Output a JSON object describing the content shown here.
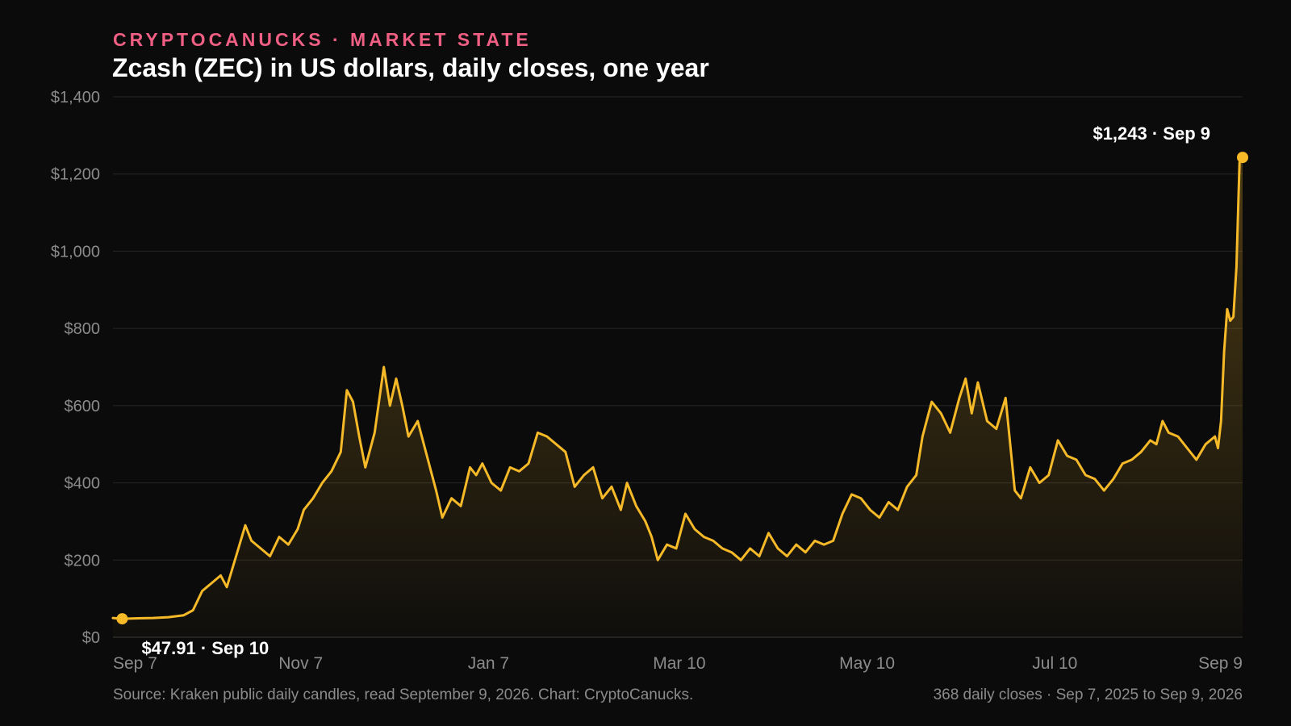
{
  "header": {
    "kicker": "CRYPTOCANUCKS · MARKET STATE",
    "title": "Zcash (ZEC) in US dollars, daily closes, one year"
  },
  "footer": {
    "source": "Source: Kraken public daily candles, read September 9, 2026. Chart: CryptoCanucks.",
    "meta": "368 daily closes · Sep 7, 2025 to Sep 9, 2026"
  },
  "colors": {
    "background": "#0b0b0c",
    "line": "#f6b928",
    "kicker": "#ef5f83",
    "text": "#ffffff",
    "muted": "#8b8b8b",
    "grid": "#262626"
  },
  "chart_data": {
    "type": "area",
    "title": "Zcash (ZEC) in US dollars, daily closes, one year",
    "xlabel": "",
    "ylabel": "",
    "ylim": [
      0,
      1400
    ],
    "yticks": [
      0,
      200,
      400,
      600,
      800,
      1000,
      1200,
      1400
    ],
    "ytick_labels": [
      "$0",
      "$200",
      "$400",
      "$600",
      "$800",
      "$1,000",
      "$1,200",
      "$1,400"
    ],
    "xticks": [
      {
        "date": "2025-09-07",
        "label": "Sep 7"
      },
      {
        "date": "2025-11-07",
        "label": "Nov 7"
      },
      {
        "date": "2026-01-07",
        "label": "Jan 7"
      },
      {
        "date": "2026-03-10",
        "label": "Mar 10"
      },
      {
        "date": "2026-05-10",
        "label": "May 10"
      },
      {
        "date": "2026-07-10",
        "label": "Jul 10"
      },
      {
        "date": "2026-09-09",
        "label": "Sep 9"
      }
    ],
    "x_range": [
      "2025-09-07",
      "2026-09-09"
    ],
    "grid": true,
    "series": [
      {
        "name": "",
        "points": [
          [
            "2025-09-07",
            50
          ],
          [
            "2025-09-10",
            47.91
          ],
          [
            "2025-09-15",
            49
          ],
          [
            "2025-09-20",
            50
          ],
          [
            "2025-09-25",
            52
          ],
          [
            "2025-09-30",
            57
          ],
          [
            "2025-10-03",
            70
          ],
          [
            "2025-10-06",
            120
          ],
          [
            "2025-10-09",
            140
          ],
          [
            "2025-10-12",
            160
          ],
          [
            "2025-10-14",
            130
          ],
          [
            "2025-10-17",
            210
          ],
          [
            "2025-10-20",
            290
          ],
          [
            "2025-10-22",
            250
          ],
          [
            "2025-10-25",
            230
          ],
          [
            "2025-10-28",
            210
          ],
          [
            "2025-10-31",
            260
          ],
          [
            "2025-11-03",
            240
          ],
          [
            "2025-11-06",
            280
          ],
          [
            "2025-11-08",
            330
          ],
          [
            "2025-11-11",
            360
          ],
          [
            "2025-11-14",
            400
          ],
          [
            "2025-11-17",
            430
          ],
          [
            "2025-11-20",
            480
          ],
          [
            "2025-11-22",
            640
          ],
          [
            "2025-11-24",
            610
          ],
          [
            "2025-11-26",
            520
          ],
          [
            "2025-11-28",
            440
          ],
          [
            "2025-12-01",
            530
          ],
          [
            "2025-12-04",
            700
          ],
          [
            "2025-12-06",
            600
          ],
          [
            "2025-12-08",
            670
          ],
          [
            "2025-12-10",
            600
          ],
          [
            "2025-12-12",
            520
          ],
          [
            "2025-12-15",
            560
          ],
          [
            "2025-12-18",
            470
          ],
          [
            "2025-12-21",
            380
          ],
          [
            "2025-12-23",
            310
          ],
          [
            "2025-12-26",
            360
          ],
          [
            "2025-12-29",
            340
          ],
          [
            "2026-01-01",
            440
          ],
          [
            "2026-01-03",
            420
          ],
          [
            "2026-01-05",
            450
          ],
          [
            "2026-01-08",
            400
          ],
          [
            "2026-01-11",
            380
          ],
          [
            "2026-01-14",
            440
          ],
          [
            "2026-01-17",
            430
          ],
          [
            "2026-01-20",
            450
          ],
          [
            "2026-01-23",
            530
          ],
          [
            "2026-01-26",
            520
          ],
          [
            "2026-01-29",
            500
          ],
          [
            "2026-02-01",
            480
          ],
          [
            "2026-02-04",
            390
          ],
          [
            "2026-02-07",
            420
          ],
          [
            "2026-02-10",
            440
          ],
          [
            "2026-02-13",
            360
          ],
          [
            "2026-02-16",
            390
          ],
          [
            "2026-02-19",
            330
          ],
          [
            "2026-02-21",
            400
          ],
          [
            "2026-02-24",
            340
          ],
          [
            "2026-02-27",
            300
          ],
          [
            "2026-03-01",
            260
          ],
          [
            "2026-03-03",
            200
          ],
          [
            "2026-03-06",
            240
          ],
          [
            "2026-03-09",
            230
          ],
          [
            "2026-03-12",
            320
          ],
          [
            "2026-03-15",
            280
          ],
          [
            "2026-03-18",
            260
          ],
          [
            "2026-03-21",
            250
          ],
          [
            "2026-03-24",
            230
          ],
          [
            "2026-03-27",
            220
          ],
          [
            "2026-03-30",
            200
          ],
          [
            "2026-04-02",
            230
          ],
          [
            "2026-04-05",
            210
          ],
          [
            "2026-04-08",
            270
          ],
          [
            "2026-04-11",
            230
          ],
          [
            "2026-04-14",
            210
          ],
          [
            "2026-04-17",
            240
          ],
          [
            "2026-04-20",
            220
          ],
          [
            "2026-04-23",
            250
          ],
          [
            "2026-04-26",
            240
          ],
          [
            "2026-04-29",
            250
          ],
          [
            "2026-05-02",
            320
          ],
          [
            "2026-05-05",
            370
          ],
          [
            "2026-05-08",
            360
          ],
          [
            "2026-05-11",
            330
          ],
          [
            "2026-05-14",
            310
          ],
          [
            "2026-05-17",
            350
          ],
          [
            "2026-05-20",
            330
          ],
          [
            "2026-05-23",
            390
          ],
          [
            "2026-05-26",
            420
          ],
          [
            "2026-05-28",
            520
          ],
          [
            "2026-05-31",
            610
          ],
          [
            "2026-06-03",
            580
          ],
          [
            "2026-06-06",
            530
          ],
          [
            "2026-06-09",
            620
          ],
          [
            "2026-06-11",
            670
          ],
          [
            "2026-06-13",
            580
          ],
          [
            "2026-06-15",
            660
          ],
          [
            "2026-06-18",
            560
          ],
          [
            "2026-06-21",
            540
          ],
          [
            "2026-06-24",
            620
          ],
          [
            "2026-06-27",
            380
          ],
          [
            "2026-06-29",
            360
          ],
          [
            "2026-07-02",
            440
          ],
          [
            "2026-07-05",
            400
          ],
          [
            "2026-07-08",
            420
          ],
          [
            "2026-07-11",
            510
          ],
          [
            "2026-07-14",
            470
          ],
          [
            "2026-07-17",
            460
          ],
          [
            "2026-07-20",
            420
          ],
          [
            "2026-07-23",
            410
          ],
          [
            "2026-07-26",
            380
          ],
          [
            "2026-07-29",
            410
          ],
          [
            "2026-08-01",
            450
          ],
          [
            "2026-08-04",
            460
          ],
          [
            "2026-08-07",
            480
          ],
          [
            "2026-08-10",
            510
          ],
          [
            "2026-08-12",
            500
          ],
          [
            "2026-08-14",
            560
          ],
          [
            "2026-08-16",
            530
          ],
          [
            "2026-08-19",
            520
          ],
          [
            "2026-08-22",
            490
          ],
          [
            "2026-08-25",
            460
          ],
          [
            "2026-08-28",
            500
          ],
          [
            "2026-08-31",
            520
          ],
          [
            "2026-09-01",
            490
          ],
          [
            "2026-09-02",
            560
          ],
          [
            "2026-09-03",
            740
          ],
          [
            "2026-09-04",
            850
          ],
          [
            "2026-09-05",
            820
          ],
          [
            "2026-09-06",
            830
          ],
          [
            "2026-09-07",
            960
          ],
          [
            "2026-09-08",
            1230
          ],
          [
            "2026-09-09",
            1243
          ]
        ]
      }
    ],
    "annotations": [
      {
        "date": "2025-09-10",
        "value": 47.91,
        "label": "$47.91 · Sep 10"
      },
      {
        "date": "2026-09-09",
        "value": 1243,
        "label": "$1,243 · Sep 9"
      }
    ]
  }
}
